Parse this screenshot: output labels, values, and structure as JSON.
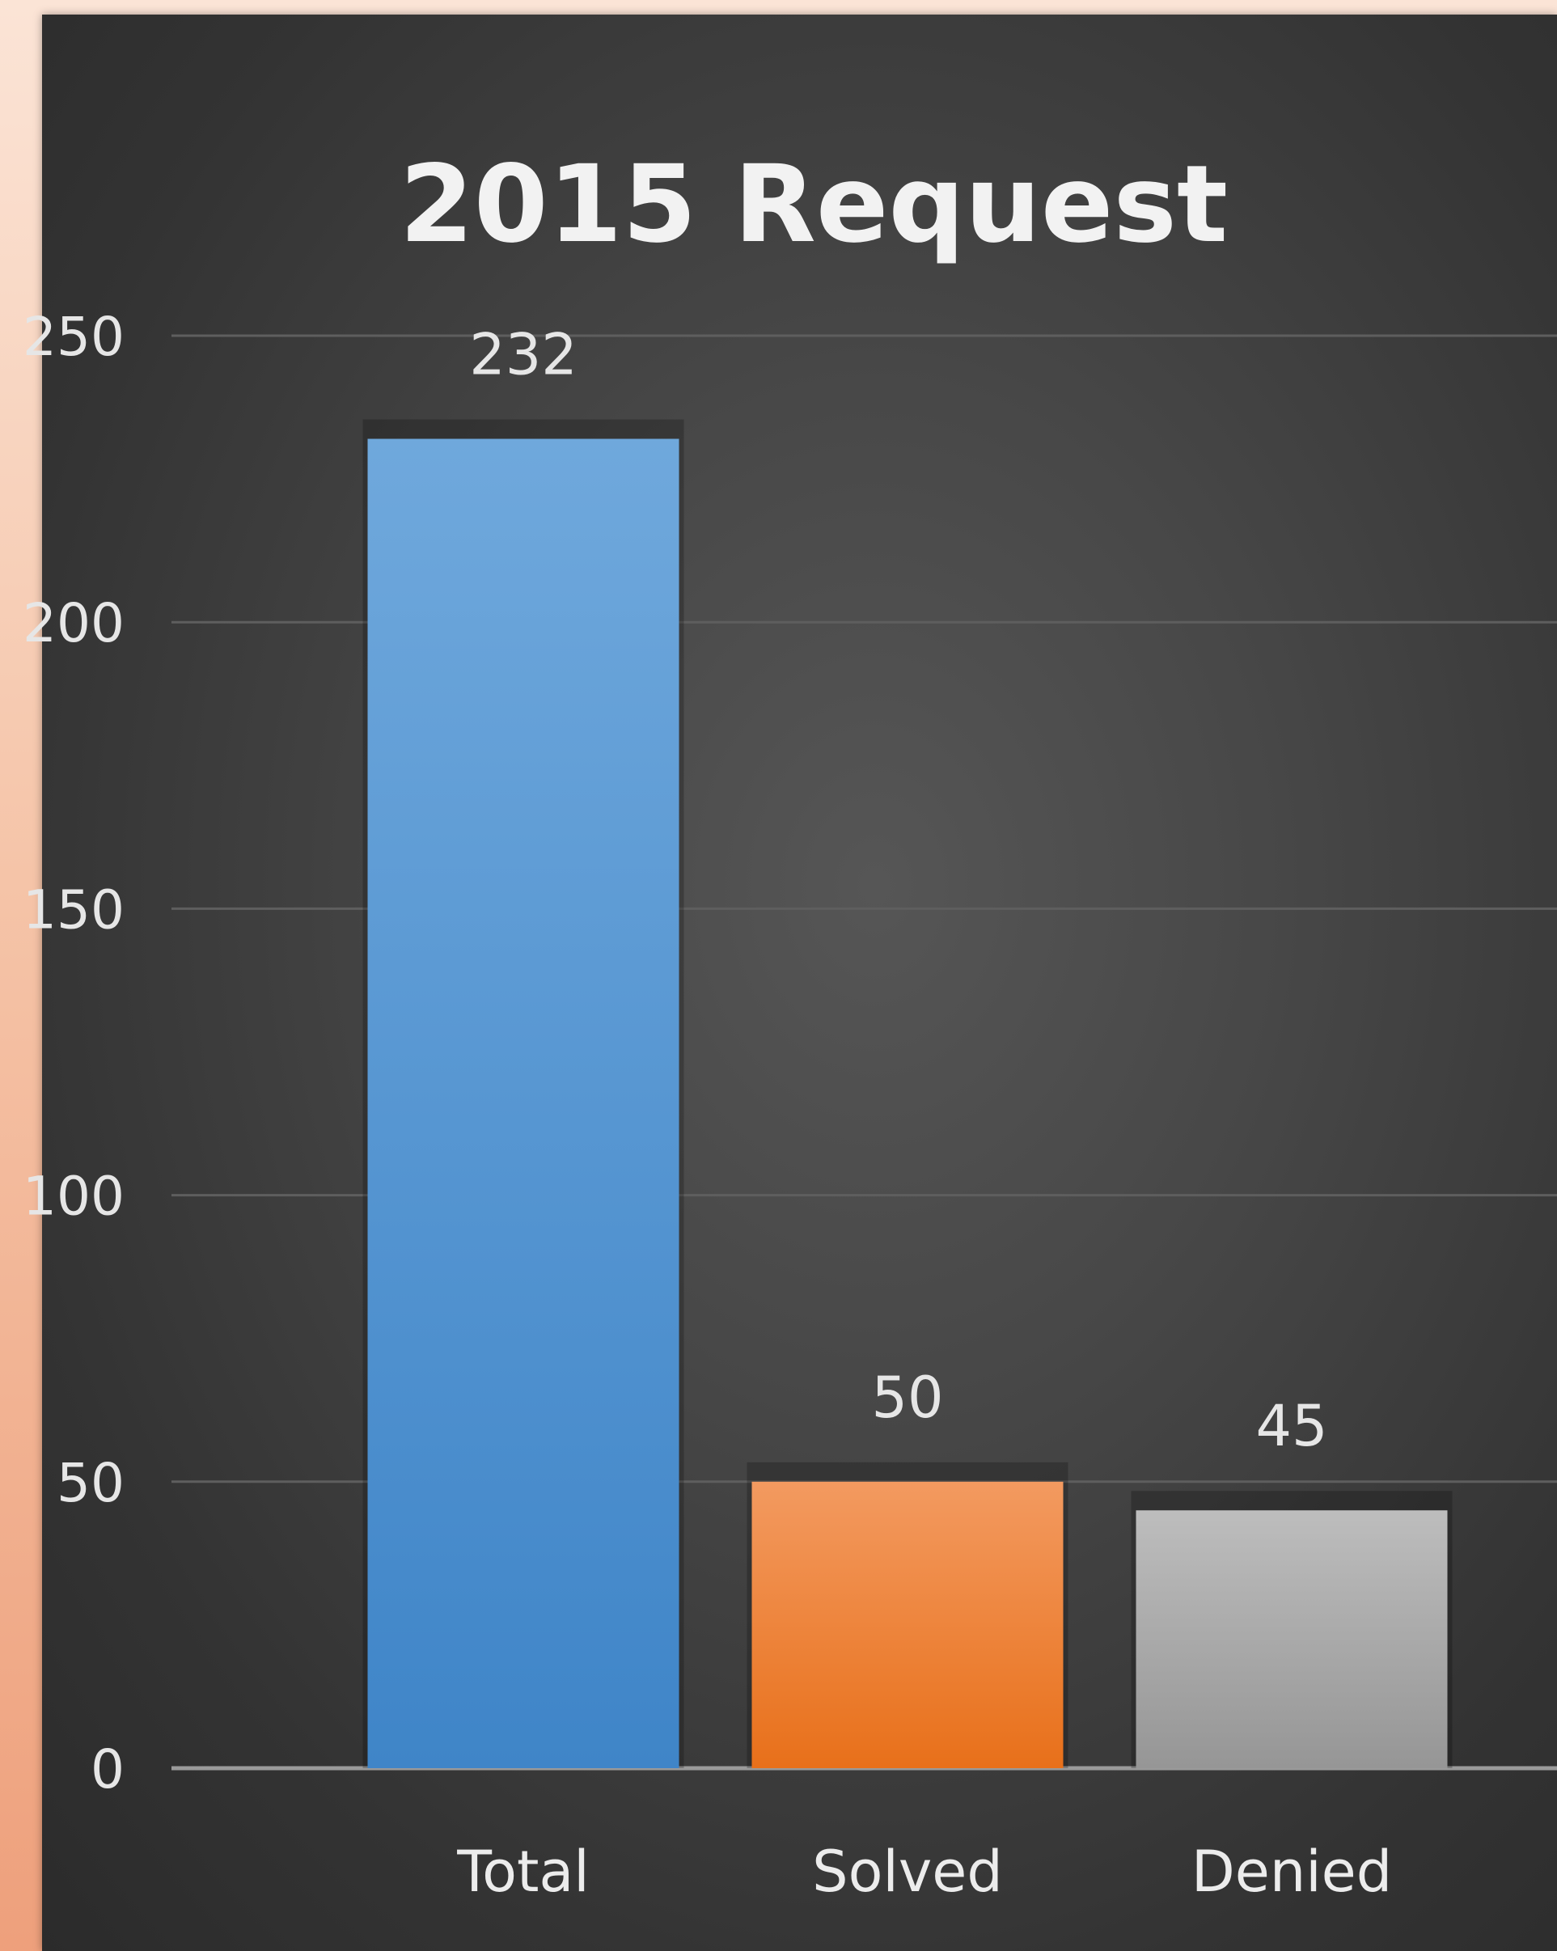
{
  "chart_data": {
    "type": "bar",
    "title": "2015 Request",
    "xlabel": "",
    "ylabel": "",
    "categories": [
      "Total",
      "Solved",
      "Denied"
    ],
    "values": [
      232,
      50,
      45
    ],
    "data_labels": [
      "232",
      "50",
      "45"
    ],
    "ylim": [
      0,
      250
    ],
    "yticks": [
      0,
      50,
      100,
      150,
      200,
      250
    ],
    "ytick_labels": [
      "0",
      "50",
      "100",
      "150",
      "200",
      "250"
    ],
    "grid": true,
    "legend": "none",
    "bar_colors": [
      {
        "top": "#6fa8dc",
        "bottom": "#3f85c8"
      },
      {
        "top": "#f39a60",
        "bottom": "#e8701a"
      },
      {
        "top": "#bdbdbd",
        "bottom": "#969696"
      }
    ]
  },
  "colors": {
    "background": "#fbe4d6",
    "panel": "#474747",
    "gridline": "#5e5e5e",
    "axis": "#9a9a9a",
    "text": "#e6e6e6"
  }
}
